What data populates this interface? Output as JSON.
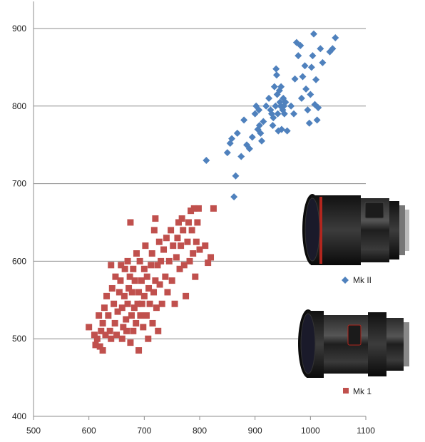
{
  "chart_data": {
    "type": "scatter",
    "title": "",
    "xlabel": "",
    "ylabel": "",
    "xlim": [
      500,
      1100
    ],
    "ylim": [
      400,
      900
    ],
    "xticks": [
      500,
      600,
      700,
      800,
      900,
      1000,
      1100
    ],
    "yticks": [
      400,
      500,
      600,
      700,
      800,
      900
    ],
    "grid": "horizontal",
    "legend_placement": "right",
    "series": [
      {
        "name": "Mk II",
        "color": "#4f81bd",
        "marker": "diamond",
        "icon": "lens-mk2-photo",
        "points": [
          [
            812,
            730
          ],
          [
            850,
            740
          ],
          [
            855,
            752
          ],
          [
            858,
            758
          ],
          [
            862,
            683
          ],
          [
            865,
            710
          ],
          [
            868,
            765
          ],
          [
            875,
            735
          ],
          [
            880,
            782
          ],
          [
            885,
            750
          ],
          [
            890,
            745
          ],
          [
            895,
            760
          ],
          [
            900,
            790
          ],
          [
            902,
            800
          ],
          [
            905,
            770
          ],
          [
            907,
            795
          ],
          [
            908,
            775
          ],
          [
            910,
            765
          ],
          [
            912,
            755
          ],
          [
            915,
            780
          ],
          [
            920,
            800
          ],
          [
            925,
            810
          ],
          [
            928,
            795
          ],
          [
            930,
            790
          ],
          [
            932,
            775
          ],
          [
            933,
            785
          ],
          [
            935,
            825
          ],
          [
            937,
            800
          ],
          [
            938,
            848
          ],
          [
            939,
            840
          ],
          [
            940,
            815
          ],
          [
            941,
            790
          ],
          [
            942,
            768
          ],
          [
            944,
            820
          ],
          [
            945,
            805
          ],
          [
            946,
            800
          ],
          [
            947,
            825
          ],
          [
            948,
            770
          ],
          [
            950,
            795
          ],
          [
            951,
            810
          ],
          [
            952,
            800
          ],
          [
            953,
            790
          ],
          [
            955,
            805
          ],
          [
            958,
            768
          ],
          [
            965,
            800
          ],
          [
            970,
            790
          ],
          [
            972,
            835
          ],
          [
            975,
            882
          ],
          [
            978,
            865
          ],
          [
            982,
            878
          ],
          [
            984,
            810
          ],
          [
            986,
            838
          ],
          [
            990,
            852
          ],
          [
            992,
            822
          ],
          [
            995,
            795
          ],
          [
            998,
            778
          ],
          [
            1000,
            815
          ],
          [
            1002,
            850
          ],
          [
            1004,
            865
          ],
          [
            1006,
            893
          ],
          [
            1008,
            802
          ],
          [
            1010,
            834
          ],
          [
            1012,
            782
          ],
          [
            1014,
            798
          ],
          [
            1018,
            874
          ],
          [
            1022,
            856
          ],
          [
            1035,
            870
          ],
          [
            1040,
            874
          ],
          [
            1045,
            888
          ]
        ]
      },
      {
        "name": "Mk 1",
        "color": "#c0504d",
        "marker": "square",
        "icon": "lens-mk1-photo",
        "points": [
          [
            600,
            515
          ],
          [
            610,
            505
          ],
          [
            612,
            492
          ],
          [
            615,
            500
          ],
          [
            618,
            530
          ],
          [
            620,
            490
          ],
          [
            622,
            510
          ],
          [
            625,
            485
          ],
          [
            625,
            520
          ],
          [
            628,
            540
          ],
          [
            630,
            505
          ],
          [
            632,
            555
          ],
          [
            635,
            530
          ],
          [
            638,
            510
          ],
          [
            640,
            500
          ],
          [
            640,
            595
          ],
          [
            642,
            565
          ],
          [
            645,
            545
          ],
          [
            647,
            520
          ],
          [
            648,
            580
          ],
          [
            650,
            505
          ],
          [
            652,
            535
          ],
          [
            655,
            560
          ],
          [
            657,
            575
          ],
          [
            658,
            595
          ],
          [
            660,
            500
          ],
          [
            660,
            540
          ],
          [
            662,
            515
          ],
          [
            664,
            555
          ],
          [
            665,
            590
          ],
          [
            667,
            525
          ],
          [
            668,
            510
          ],
          [
            670,
            545
          ],
          [
            670,
            600
          ],
          [
            672,
            565
          ],
          [
            674,
            580
          ],
          [
            675,
            495
          ],
          [
            675,
            650
          ],
          [
            677,
            530
          ],
          [
            678,
            560
          ],
          [
            680,
            510
          ],
          [
            680,
            590
          ],
          [
            682,
            540
          ],
          [
            683,
            575
          ],
          [
            685,
            520
          ],
          [
            686,
            610
          ],
          [
            688,
            545
          ],
          [
            690,
            560
          ],
          [
            690,
            485
          ],
          [
            692,
            600
          ],
          [
            693,
            530
          ],
          [
            695,
            575
          ],
          [
            696,
            545
          ],
          [
            698,
            515
          ],
          [
            700,
            590
          ],
          [
            700,
            555
          ],
          [
            702,
            620
          ],
          [
            704,
            530
          ],
          [
            705,
            580
          ],
          [
            707,
            500
          ],
          [
            708,
            565
          ],
          [
            710,
            545
          ],
          [
            712,
            595
          ],
          [
            714,
            610
          ],
          [
            715,
            520
          ],
          [
            717,
            560
          ],
          [
            718,
            640
          ],
          [
            720,
            575
          ],
          [
            720,
            655
          ],
          [
            722,
            540
          ],
          [
            724,
            595
          ],
          [
            725,
            510
          ],
          [
            727,
            625
          ],
          [
            728,
            570
          ],
          [
            730,
            600
          ],
          [
            732,
            545
          ],
          [
            735,
            615
          ],
          [
            738,
            580
          ],
          [
            740,
            630
          ],
          [
            742,
            560
          ],
          [
            745,
            600
          ],
          [
            748,
            640
          ],
          [
            750,
            575
          ],
          [
            752,
            620
          ],
          [
            755,
            545
          ],
          [
            758,
            605
          ],
          [
            760,
            630
          ],
          [
            762,
            650
          ],
          [
            764,
            590
          ],
          [
            766,
            620
          ],
          [
            768,
            655
          ],
          [
            770,
            640
          ],
          [
            772,
            595
          ],
          [
            775,
            555
          ],
          [
            778,
            625
          ],
          [
            780,
            650
          ],
          [
            782,
            600
          ],
          [
            784,
            665
          ],
          [
            786,
            640
          ],
          [
            788,
            610
          ],
          [
            790,
            668
          ],
          [
            792,
            580
          ],
          [
            794,
            625
          ],
          [
            796,
            650
          ],
          [
            798,
            668
          ],
          [
            800,
            615
          ],
          [
            810,
            620
          ],
          [
            815,
            598
          ],
          [
            820,
            605
          ],
          [
            825,
            668
          ]
        ]
      }
    ]
  }
}
